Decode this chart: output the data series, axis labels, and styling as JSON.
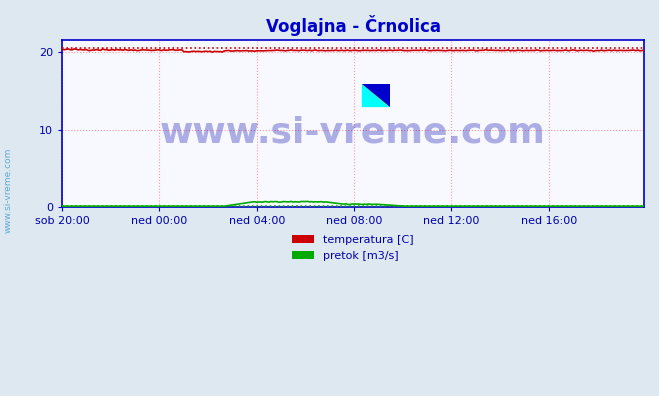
{
  "title": "Voglajna - Črnolica",
  "title_color": "#0000cc",
  "title_fontsize": 12,
  "background_color": "#dde8f0",
  "plot_bg_color": "#f8f8ff",
  "grid_color": "#ff9999",
  "yticks": [
    0,
    10,
    20
  ],
  "ylim": [
    0,
    21.5
  ],
  "xlim": [
    0,
    287
  ],
  "xtick_labels": [
    "sob 20:00",
    "ned 00:00",
    "ned 04:00",
    "ned 08:00",
    "ned 12:00",
    "ned 16:00"
  ],
  "xtick_positions": [
    0,
    48,
    96,
    144,
    192,
    240
  ],
  "temp_color": "#cc0000",
  "pretok_color": "#00aa00",
  "temp_avg": 20.5,
  "pretok_avg": 0.18,
  "watermark_text": "www.si-vreme.com",
  "watermark_color": "#0000aa",
  "watermark_alpha": 0.3,
  "watermark_fontsize": 26,
  "legend_labels": [
    "temperatura [C]",
    "pretok [m3/s]"
  ],
  "legend_colors": [
    "#cc0000",
    "#00aa00"
  ],
  "axis_color": "#0000cc",
  "left_label": "www.si-vreme.com",
  "left_label_color": "#4499cc",
  "tick_color": "#0000aa",
  "tick_fontsize": 8
}
